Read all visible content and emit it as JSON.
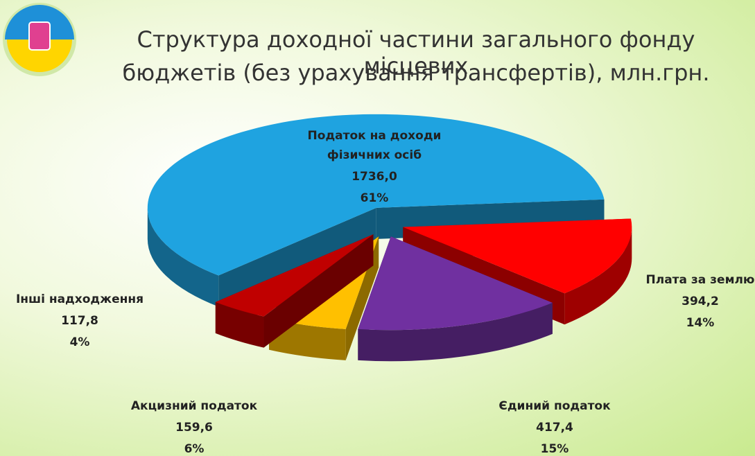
{
  "chart_data": {
    "type": "pie3d",
    "title": [
      "Структура доходної частини загального фонду місцевих",
      "бюджетів (без урахування трансфертів),  млн.грн."
    ],
    "categories": [
      "Плата за землю",
      "Єдиний  податок",
      "Акцизний податок",
      "Інші надходження",
      "Податок на доходи фізичних осіб"
    ],
    "values": [
      394.2,
      417.4,
      159.6,
      117.8,
      1736.0
    ],
    "value_labels": [
      "394,2",
      "417,4",
      "159,6",
      "117,8",
      "1736,0"
    ],
    "percent_labels": [
      "14%",
      "15%",
      "6%",
      "4%",
      "61%"
    ],
    "colors": [
      "#ff0000",
      "#7030a0",
      "#ffc000",
      "#c00000",
      "#1fa3e0"
    ]
  }
}
